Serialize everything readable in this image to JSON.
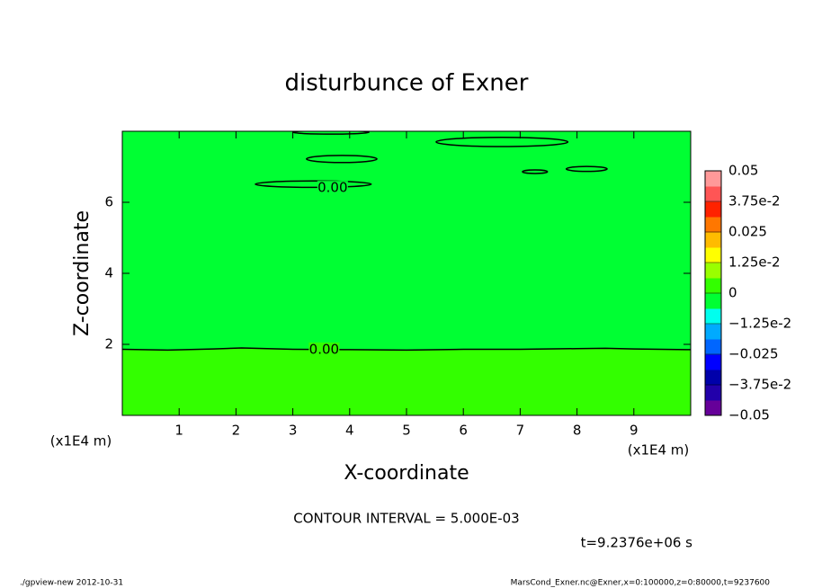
{
  "chart_data": {
    "type": "contour",
    "title": "disturbunce of Exner",
    "xlabel": "X-coordinate",
    "ylabel": "Z-coordinate",
    "xunit": "(x1E4 m)",
    "xlim": [
      0,
      10
    ],
    "xticks": [
      1,
      2,
      3,
      4,
      5,
      6,
      7,
      8,
      9
    ],
    "ylim": [
      0,
      8
    ],
    "yticks": [
      2,
      4,
      6
    ],
    "interval_text": "CONTOUR INTERVAL = 5.000E-03",
    "time_text": "t=9.2376e+06 s",
    "footer_left": "./gpview-new  2012-10-31",
    "footer_right": "MarsCond_Exner.nc@Exner,x=0:100000,z=0:80000,t=9237600",
    "colorbar": {
      "lim": [
        -0.05,
        0.05
      ],
      "ticks": [
        0.05,
        {
          "value": 0.0375,
          "label": "3.75e-2"
        },
        0.025,
        {
          "value": 0.0125,
          "label": "1.25e-2"
        },
        0,
        {
          "value": -0.0125,
          "label": "−1.25e-2"
        },
        {
          "value": -0.025,
          "label": "−0.025"
        },
        {
          "value": -0.0375,
          "label": "−3.75e-2"
        },
        {
          "value": -0.05,
          "label": "−0.05"
        }
      ],
      "colors": [
        "#660099",
        "#2200aa",
        "#0000aa",
        "#0000ff",
        "#0066ff",
        "#00aaff",
        "#00ffee",
        "#00ff33",
        "#33ff00",
        "#99ff00",
        "#ffff00",
        "#ffbb00",
        "#ff7700",
        "#ff2200",
        "#ff5555",
        "#ff9999"
      ]
    },
    "above_color": "#00ff33",
    "below_color": "#33ff00",
    "line": {
      "x": [
        0,
        0.8,
        1.6,
        2.1,
        3,
        4,
        5,
        6,
        7,
        8,
        8.5,
        9,
        10
      ],
      "y": [
        1.86,
        1.84,
        1.87,
        1.9,
        1.86,
        1.85,
        1.84,
        1.86,
        1.86,
        1.88,
        1.89,
        1.87,
        1.85
      ]
    },
    "ellipses": [
      {
        "cx": 3.67,
        "cy": 7.97,
        "rx": 0.67,
        "ry": 0.05
      },
      {
        "cx": 3.86,
        "cy": 7.22,
        "rx": 0.62,
        "ry": 0.1
      },
      {
        "cx": 3.36,
        "cy": 6.51,
        "rx": 1.02,
        "ry": 0.09
      },
      {
        "cx": 6.68,
        "cy": 7.7,
        "rx": 1.16,
        "ry": 0.13
      },
      {
        "cx": 7.26,
        "cy": 6.86,
        "rx": 0.22,
        "ry": 0.05
      },
      {
        "cx": 8.17,
        "cy": 6.94,
        "rx": 0.36,
        "ry": 0.07
      }
    ],
    "contour_labels": [
      {
        "text": "0.00",
        "x": 3.55,
        "y": 1.85
      },
      {
        "text": "0.00",
        "x": 3.7,
        "y": 6.4
      }
    ]
  }
}
